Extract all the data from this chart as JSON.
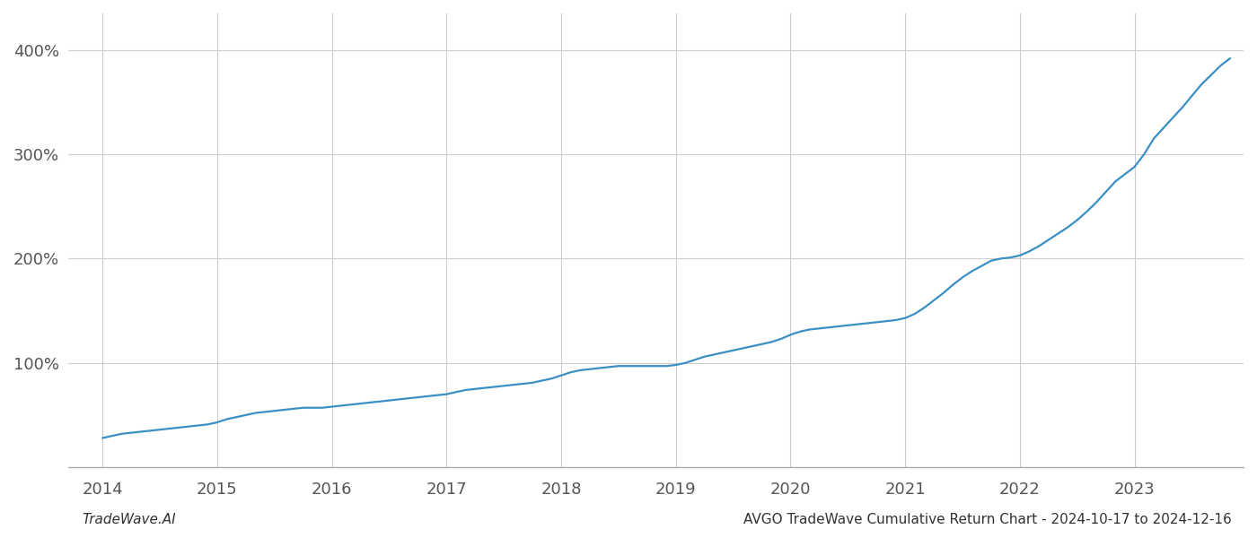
{
  "title": "",
  "watermark_left": "TradeWave.AI",
  "watermark_right": "AVGO TradeWave Cumulative Return Chart - 2024-10-17 to 2024-12-16",
  "line_color": "#3a8fc4",
  "background_color": "#ffffff",
  "grid_color": "#cccccc",
  "x_years": [
    2014,
    2015,
    2016,
    2017,
    2018,
    2019,
    2020,
    2021,
    2022,
    2023
  ],
  "x_data": [
    2014.0,
    2014.083,
    2014.167,
    2014.25,
    2014.333,
    2014.417,
    2014.5,
    2014.583,
    2014.667,
    2014.75,
    2014.833,
    2014.917,
    2015.0,
    2015.083,
    2015.167,
    2015.25,
    2015.333,
    2015.417,
    2015.5,
    2015.583,
    2015.667,
    2015.75,
    2015.833,
    2015.917,
    2016.0,
    2016.083,
    2016.167,
    2016.25,
    2016.333,
    2016.417,
    2016.5,
    2016.583,
    2016.667,
    2016.75,
    2016.833,
    2016.917,
    2017.0,
    2017.083,
    2017.167,
    2017.25,
    2017.333,
    2017.417,
    2017.5,
    2017.583,
    2017.667,
    2017.75,
    2017.833,
    2017.917,
    2018.0,
    2018.083,
    2018.167,
    2018.25,
    2018.333,
    2018.417,
    2018.5,
    2018.583,
    2018.667,
    2018.75,
    2018.833,
    2018.917,
    2019.0,
    2019.083,
    2019.167,
    2019.25,
    2019.333,
    2019.417,
    2019.5,
    2019.583,
    2019.667,
    2019.75,
    2019.833,
    2019.917,
    2020.0,
    2020.083,
    2020.167,
    2020.25,
    2020.333,
    2020.417,
    2020.5,
    2020.583,
    2020.667,
    2020.75,
    2020.833,
    2020.917,
    2021.0,
    2021.083,
    2021.167,
    2021.25,
    2021.333,
    2021.417,
    2021.5,
    2021.583,
    2021.667,
    2021.75,
    2021.833,
    2021.917,
    2022.0,
    2022.083,
    2022.167,
    2022.25,
    2022.333,
    2022.417,
    2022.5,
    2022.583,
    2022.667,
    2022.75,
    2022.833,
    2022.917,
    2023.0,
    2023.083,
    2023.167,
    2023.25,
    2023.333,
    2023.417,
    2023.5,
    2023.583,
    2023.667,
    2023.75,
    2023.833
  ],
  "y_data": [
    28,
    30,
    32,
    33,
    34,
    35,
    36,
    37,
    38,
    39,
    40,
    41,
    43,
    46,
    48,
    50,
    52,
    53,
    54,
    55,
    56,
    57,
    57,
    57,
    58,
    59,
    60,
    61,
    62,
    63,
    64,
    65,
    66,
    67,
    68,
    69,
    70,
    72,
    74,
    75,
    76,
    77,
    78,
    79,
    80,
    81,
    83,
    85,
    88,
    91,
    93,
    94,
    95,
    96,
    97,
    97,
    97,
    97,
    97,
    97,
    98,
    100,
    103,
    106,
    108,
    110,
    112,
    114,
    116,
    118,
    120,
    123,
    127,
    130,
    132,
    133,
    134,
    135,
    136,
    137,
    138,
    139,
    140,
    141,
    143,
    147,
    153,
    160,
    167,
    175,
    182,
    188,
    193,
    198,
    200,
    201,
    203,
    207,
    212,
    218,
    224,
    230,
    237,
    245,
    254,
    264,
    274,
    281,
    288,
    300,
    315,
    325,
    335,
    345,
    356,
    367,
    376,
    385,
    392
  ],
  "ylim": [
    0,
    435
  ],
  "yticks": [
    100,
    200,
    300,
    400
  ],
  "xlim": [
    2013.7,
    2023.95
  ],
  "line_width": 1.6,
  "font_size_ticks": 13,
  "font_size_watermark": 11
}
